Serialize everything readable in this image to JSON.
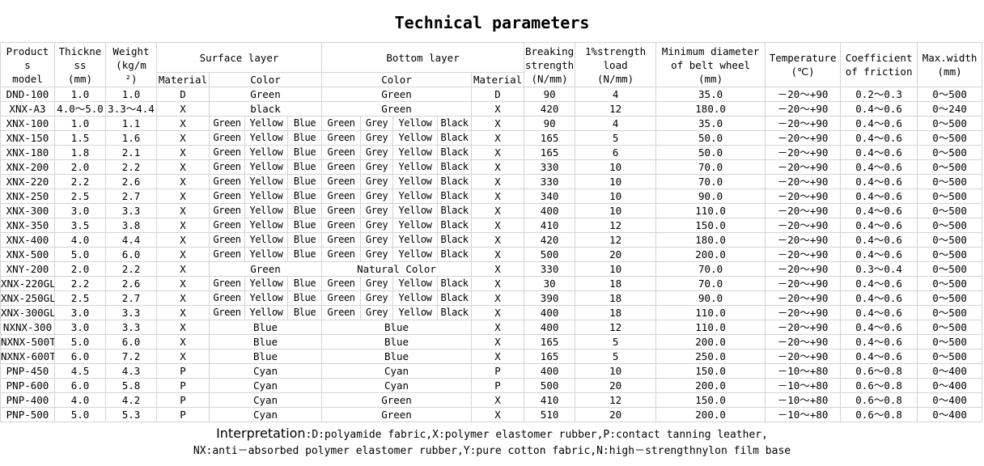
{
  "title": "Technical parameters",
  "header": {
    "model": "Product\ns\nmodel",
    "thickness": "Thickne\nss\n(mm)",
    "weight": "Weight\n(kg/m\n²)",
    "surface": "Surface layer",
    "bottom": "Bottom layer",
    "material": "Material",
    "color": "Color",
    "breaking": "Breaking\nstrength\n(N/mm)",
    "load": "1%strength\nload\n(N/mm)",
    "diameter": "Minimum diameter\nof belt wheel\n(mm)",
    "temperature": "Temperature\n(℃)",
    "friction": "Coefficient\nof friction",
    "width": "Max.width\n(mm)"
  },
  "split_colors": {
    "surface": [
      "Green",
      "Yellow",
      "Blue"
    ],
    "bottom": [
      "Green",
      "Grey",
      "Yellow",
      "Black"
    ]
  },
  "rows": [
    [
      "DND-100",
      "1.0",
      "1.0",
      "D",
      "Green",
      "Green",
      "D",
      "90",
      "4",
      "35.0",
      "－20～+90",
      "0.2～0.3",
      "0～500"
    ],
    [
      "XNX-A3",
      "4.0～5.0",
      "3.3～4.4",
      "X",
      "black",
      "Green",
      "X",
      "420",
      "12",
      "180.0",
      "－20～+90",
      "0.4～0.6",
      "0～240"
    ],
    [
      "XNX-100",
      "1.0",
      "1.1",
      "X",
      "split",
      "split",
      "X",
      "90",
      "4",
      "35.0",
      "－20～+90",
      "0.4～0.6",
      "0～500"
    ],
    [
      "XNX-150",
      "1.5",
      "1.6",
      "X",
      "split",
      "split",
      "X",
      "165",
      "5",
      "50.0",
      "－20～+90",
      "0.4～0.6",
      "0～500"
    ],
    [
      "XNX-180",
      "1.8",
      "2.1",
      "X",
      "split",
      "split",
      "X",
      "165",
      "6",
      "50.0",
      "－20～+90",
      "0.4～0.6",
      "0～500"
    ],
    [
      "XNX-200",
      "2.0",
      "2.2",
      "X",
      "split",
      "split",
      "X",
      "330",
      "10",
      "70.0",
      "－20～+90",
      "0.4～0.6",
      "0～500"
    ],
    [
      "XNX-220",
      "2.2",
      "2.6",
      "X",
      "split",
      "split",
      "X",
      "330",
      "10",
      "70.0",
      "－20～+90",
      "0.4～0.6",
      "0～500"
    ],
    [
      "XNX-250",
      "2.5",
      "2.7",
      "X",
      "split",
      "split",
      "X",
      "340",
      "10",
      "90.0",
      "－20～+90",
      "0.4～0.6",
      "0～500"
    ],
    [
      "XNX-300",
      "3.0",
      "3.3",
      "X",
      "split",
      "split",
      "X",
      "400",
      "10",
      "110.0",
      "－20～+90",
      "0.4～0.6",
      "0～500"
    ],
    [
      "XNX-350",
      "3.5",
      "3.8",
      "X",
      "split",
      "split",
      "X",
      "410",
      "12",
      "150.0",
      "－20～+90",
      "0.4～0.6",
      "0～500"
    ],
    [
      "XNX-400",
      "4.0",
      "4.4",
      "X",
      "split",
      "split",
      "X",
      "420",
      "12",
      "180.0",
      "－20～+90",
      "0.4～0.6",
      "0～500"
    ],
    [
      "XNX-500",
      "5.0",
      "6.0",
      "X",
      "split",
      "split",
      "X",
      "500",
      "20",
      "200.0",
      "－20～+90",
      "0.4～0.6",
      "0～500"
    ],
    [
      "XNY-200",
      "2.0",
      "2.2",
      "X",
      "Green",
      "Natural Color",
      "X",
      "330",
      "10",
      "70.0",
      "－20～+90",
      "0.3～0.4",
      "0～500"
    ],
    [
      "XNX-220GL",
      "2.2",
      "2.6",
      "X",
      "split",
      "split",
      "X",
      "30",
      "18",
      "70.0",
      "－20～+90",
      "0.4～0.6",
      "0～500"
    ],
    [
      "XNX-250GL",
      "2.5",
      "2.7",
      "X",
      "split",
      "split",
      "X",
      "390",
      "18",
      "90.0",
      "－20～+90",
      "0.4～0.6",
      "0～500"
    ],
    [
      "XNX-300GL",
      "3.0",
      "3.3",
      "X",
      "split",
      "split",
      "X",
      "400",
      "18",
      "110.0",
      "－20～+90",
      "0.4～0.6",
      "0～500"
    ],
    [
      "NXNX-300",
      "3.0",
      "3.3",
      "X",
      "Blue",
      "Blue",
      "X",
      "400",
      "12",
      "110.0",
      "－20～+90",
      "0.4～0.6",
      "0～500"
    ],
    [
      "NXNX-500T",
      "5.0",
      "6.0",
      "X",
      "Blue",
      "Blue",
      "X",
      "165",
      "5",
      "200.0",
      "－20～+90",
      "0.4～0.6",
      "0～500"
    ],
    [
      "NXNX-600T",
      "6.0",
      "7.2",
      "X",
      "Blue",
      "Blue",
      "X",
      "165",
      "5",
      "250.0",
      "－20～+90",
      "0.4～0.6",
      "0～500"
    ],
    [
      "PNP-450",
      "4.5",
      "4.3",
      "P",
      "Cyan",
      "Cyan",
      "P",
      "400",
      "10",
      "150.0",
      "－10～+80",
      "0.6～0.8",
      "0～400"
    ],
    [
      "PNP-600",
      "6.0",
      "5.8",
      "P",
      "Cyan",
      "Cyan",
      "P",
      "500",
      "20",
      "200.0",
      "－10～+80",
      "0.6～0.8",
      "0～400"
    ],
    [
      "PNP-400",
      "4.0",
      "4.2",
      "P",
      "Cyan",
      "Green",
      "X",
      "410",
      "12",
      "150.0",
      "－10～+80",
      "0.6～0.8",
      "0～400"
    ],
    [
      "PNP-500",
      "5.0",
      "5.3",
      "P",
      "Cyan",
      "Green",
      "X",
      "510",
      "20",
      "200.0",
      "－10～+80",
      "0.6～0.8",
      "0～400"
    ]
  ],
  "note": {
    "label": "Interpretation",
    "colon": ":",
    "line1": "D:polyamide fabric,X:polymer elastomer rubber,P:contact tanning leather,",
    "line2": "NX:anti－absorbed polymer elastomer rubber,Y:pure cotton fabric,N:high－strengthnylon film base"
  }
}
